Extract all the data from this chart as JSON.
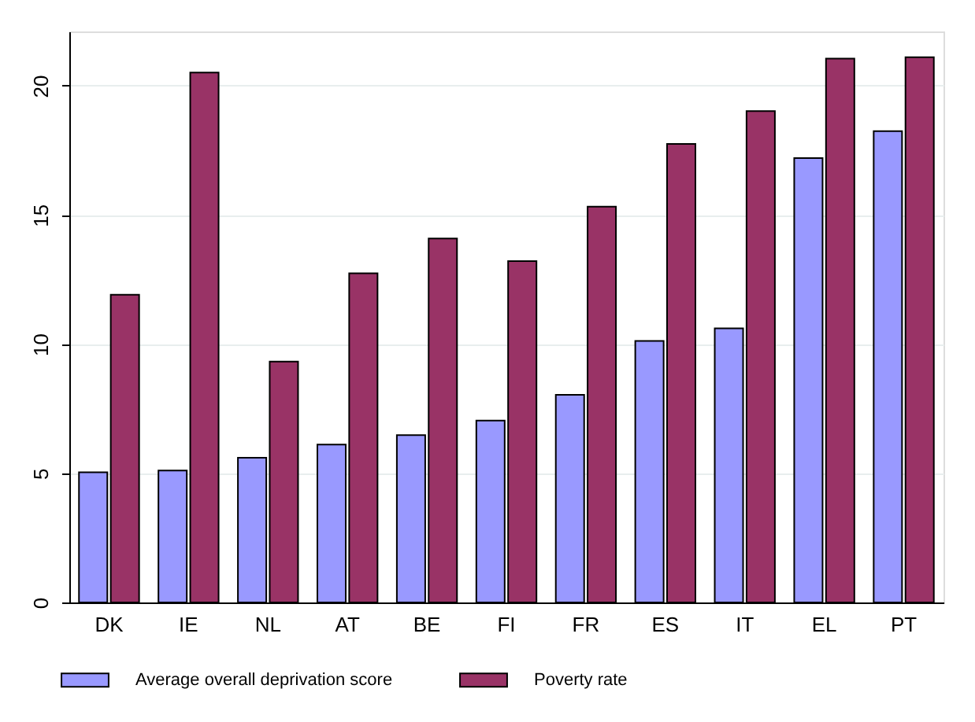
{
  "chart_data": {
    "type": "bar",
    "categories": [
      "DK",
      "IE",
      "NL",
      "AT",
      "BE",
      "FI",
      "FR",
      "ES",
      "IT",
      "EL",
      "PT"
    ],
    "series": [
      {
        "name": "Average overall deprivation score",
        "color": "#9999ff",
        "values": [
          5.04,
          5.11,
          5.6,
          6.11,
          6.48,
          7.04,
          8.04,
          10.12,
          10.61,
          17.2,
          18.24
        ]
      },
      {
        "name": "Poverty rate",
        "color": "#993366",
        "values": [
          11.91,
          20.51,
          9.32,
          12.74,
          14.09,
          13.21,
          15.32,
          17.75,
          19.02,
          21.05,
          21.1
        ]
      }
    ],
    "ylim": [
      0,
      22.1
    ],
    "yticks": [
      0,
      5,
      10,
      15,
      20
    ],
    "grid": "y",
    "legend": "bottom"
  }
}
